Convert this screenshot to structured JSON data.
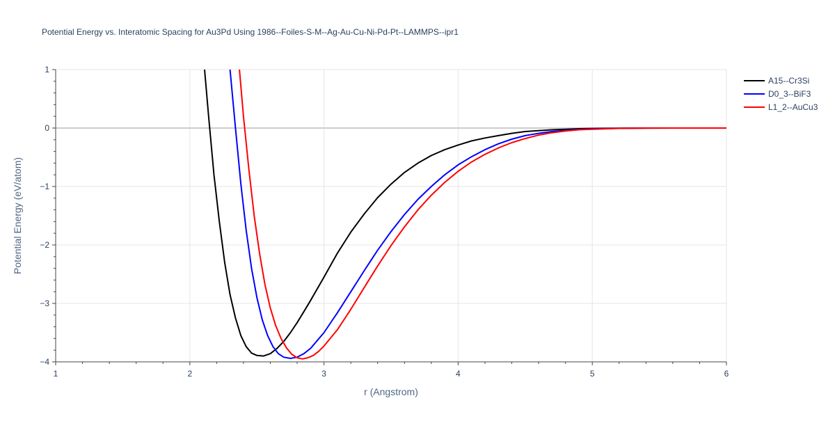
{
  "chart_data": {
    "type": "line",
    "title": "Potential Energy vs. Interatomic Spacing for Au3Pd Using 1986--Foiles-S-M--Ag-Au-Cu-Ni-Pd-Pt--LAMMPS--ipr1",
    "xlabel": "r (Angstrom)",
    "ylabel": "Potential Energy (eV/atom)",
    "xlim": [
      1,
      6
    ],
    "ylim": [
      -4,
      1
    ],
    "x_ticks": [
      1,
      2,
      3,
      4,
      5,
      6
    ],
    "x_tick_labels": [
      "1",
      "2",
      "3",
      "4",
      "5",
      "6"
    ],
    "y_ticks": [
      -4,
      -3,
      -2,
      -1,
      0,
      1
    ],
    "y_tick_labels": [
      "−4",
      "−3",
      "−2",
      "−1",
      "0",
      "1"
    ],
    "grid": true,
    "legend_position": "top-right",
    "series": [
      {
        "name": "A15--Cr3Si",
        "color": "#000000",
        "x": [
          2.11,
          2.14,
          2.18,
          2.22,
          2.26,
          2.3,
          2.34,
          2.38,
          2.42,
          2.46,
          2.5,
          2.55,
          2.6,
          2.65,
          2.7,
          2.75,
          2.8,
          2.85,
          2.9,
          3.0,
          3.1,
          3.2,
          3.3,
          3.4,
          3.5,
          3.6,
          3.7,
          3.8,
          3.9,
          4.0,
          4.1,
          4.2,
          4.3,
          4.4,
          4.5,
          4.6,
          4.7,
          4.8,
          4.9,
          5.0,
          5.2,
          5.4,
          5.6,
          6.0
        ],
        "y": [
          1.0,
          0.2,
          -0.8,
          -1.6,
          -2.3,
          -2.85,
          -3.25,
          -3.55,
          -3.74,
          -3.85,
          -3.89,
          -3.9,
          -3.86,
          -3.77,
          -3.65,
          -3.5,
          -3.33,
          -3.14,
          -2.95,
          -2.55,
          -2.14,
          -1.78,
          -1.47,
          -1.19,
          -0.96,
          -0.76,
          -0.6,
          -0.47,
          -0.37,
          -0.29,
          -0.22,
          -0.17,
          -0.13,
          -0.09,
          -0.06,
          -0.045,
          -0.03,
          -0.02,
          -0.012,
          -0.007,
          -0.002,
          0.0,
          0.0,
          0.0
        ]
      },
      {
        "name": "D0_3--BiF3",
        "color": "#0000ff",
        "x": [
          2.3,
          2.34,
          2.38,
          2.42,
          2.46,
          2.5,
          2.54,
          2.58,
          2.62,
          2.66,
          2.7,
          2.75,
          2.8,
          2.85,
          2.9,
          3.0,
          3.1,
          3.2,
          3.3,
          3.4,
          3.5,
          3.6,
          3.7,
          3.8,
          3.9,
          4.0,
          4.1,
          4.2,
          4.3,
          4.4,
          4.5,
          4.6,
          4.7,
          4.8,
          4.9,
          5.0,
          5.2,
          5.4,
          5.6,
          6.0
        ],
        "y": [
          1.0,
          0.0,
          -0.95,
          -1.75,
          -2.4,
          -2.9,
          -3.28,
          -3.55,
          -3.74,
          -3.86,
          -3.92,
          -3.94,
          -3.92,
          -3.86,
          -3.77,
          -3.5,
          -3.16,
          -2.8,
          -2.44,
          -2.09,
          -1.77,
          -1.48,
          -1.22,
          -1.0,
          -0.8,
          -0.63,
          -0.49,
          -0.37,
          -0.27,
          -0.19,
          -0.13,
          -0.09,
          -0.06,
          -0.04,
          -0.025,
          -0.015,
          -0.005,
          -0.001,
          0.0,
          0.0
        ]
      },
      {
        "name": "L1_2--AuCu3",
        "color": "#ff0000",
        "x": [
          2.37,
          2.4,
          2.44,
          2.48,
          2.52,
          2.56,
          2.6,
          2.64,
          2.68,
          2.72,
          2.76,
          2.8,
          2.84,
          2.88,
          2.92,
          2.96,
          3.0,
          3.1,
          3.2,
          3.3,
          3.4,
          3.5,
          3.6,
          3.7,
          3.8,
          3.9,
          4.0,
          4.1,
          4.2,
          4.3,
          4.4,
          4.5,
          4.6,
          4.7,
          4.8,
          4.9,
          5.0,
          5.2,
          5.4,
          5.6,
          6.0
        ],
        "y": [
          1.0,
          0.2,
          -0.7,
          -1.5,
          -2.15,
          -2.68,
          -3.08,
          -3.38,
          -3.6,
          -3.76,
          -3.87,
          -3.93,
          -3.95,
          -3.93,
          -3.89,
          -3.82,
          -3.73,
          -3.45,
          -3.1,
          -2.73,
          -2.36,
          -2.01,
          -1.69,
          -1.4,
          -1.15,
          -0.93,
          -0.74,
          -0.58,
          -0.45,
          -0.34,
          -0.25,
          -0.18,
          -0.12,
          -0.08,
          -0.05,
          -0.03,
          -0.02,
          -0.006,
          -0.001,
          0.0,
          0.0
        ]
      }
    ]
  }
}
